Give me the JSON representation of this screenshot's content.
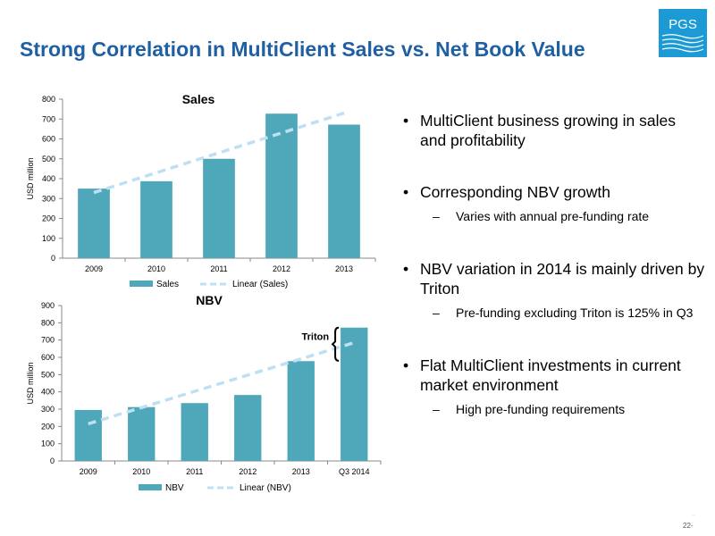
{
  "slide": {
    "title": "Strong Correlation in MultiClient Sales vs. Net Book Value",
    "logo_text": "PGS",
    "page_number": "22-",
    "page_dot": "·"
  },
  "bullets": [
    {
      "text": "MultiClient business growing in sales and profitability",
      "subs": []
    },
    {
      "text": "Corresponding NBV growth",
      "subs": [
        "Varies with annual pre-funding rate"
      ]
    },
    {
      "text": "NBV variation in 2014 is mainly driven by Triton",
      "subs": [
        "Pre-funding excluding Triton is 125% in Q3"
      ]
    },
    {
      "text": "Flat MultiClient investments in current market environment",
      "subs": [
        "High pre-funding requirements"
      ]
    }
  ],
  "colors": {
    "bar": "#4fa8b9",
    "trend": "#bfe0f3",
    "title_blue": "#1f5fa3",
    "logo_blue": "#1b9ad6"
  },
  "chart_data": [
    {
      "type": "bar",
      "title": "Sales",
      "categories": [
        "2009",
        "2010",
        "2011",
        "2012",
        "2013"
      ],
      "series": [
        {
          "name": "Sales",
          "values": [
            350,
            387,
            500,
            727,
            672
          ]
        }
      ],
      "trendline": {
        "name": "Linear (Sales)",
        "start": 330,
        "end": 730
      },
      "ylabel": "USD million",
      "xlabel": "",
      "ylim": [
        0,
        800
      ],
      "yticks": [
        0,
        100,
        200,
        300,
        400,
        500,
        600,
        700,
        800
      ],
      "legend": "bottom",
      "grid": false
    },
    {
      "type": "bar",
      "title": "NBV",
      "categories": [
        "2009",
        "2010",
        "2011",
        "2012",
        "2013",
        "Q3 2014"
      ],
      "series": [
        {
          "name": "NBV",
          "values": [
            295,
            312,
            335,
            382,
            578,
            772
          ]
        }
      ],
      "trendline": {
        "name": "Linear (NBV)",
        "start": 215,
        "end": 685
      },
      "ylabel": "USD million",
      "xlabel": "",
      "ylim": [
        0,
        900
      ],
      "yticks": [
        0,
        100,
        200,
        300,
        400,
        500,
        600,
        700,
        800,
        900
      ],
      "legend": "bottom",
      "grid": false,
      "annotation": {
        "text": "Triton",
        "from": 580,
        "to": 772
      }
    }
  ]
}
